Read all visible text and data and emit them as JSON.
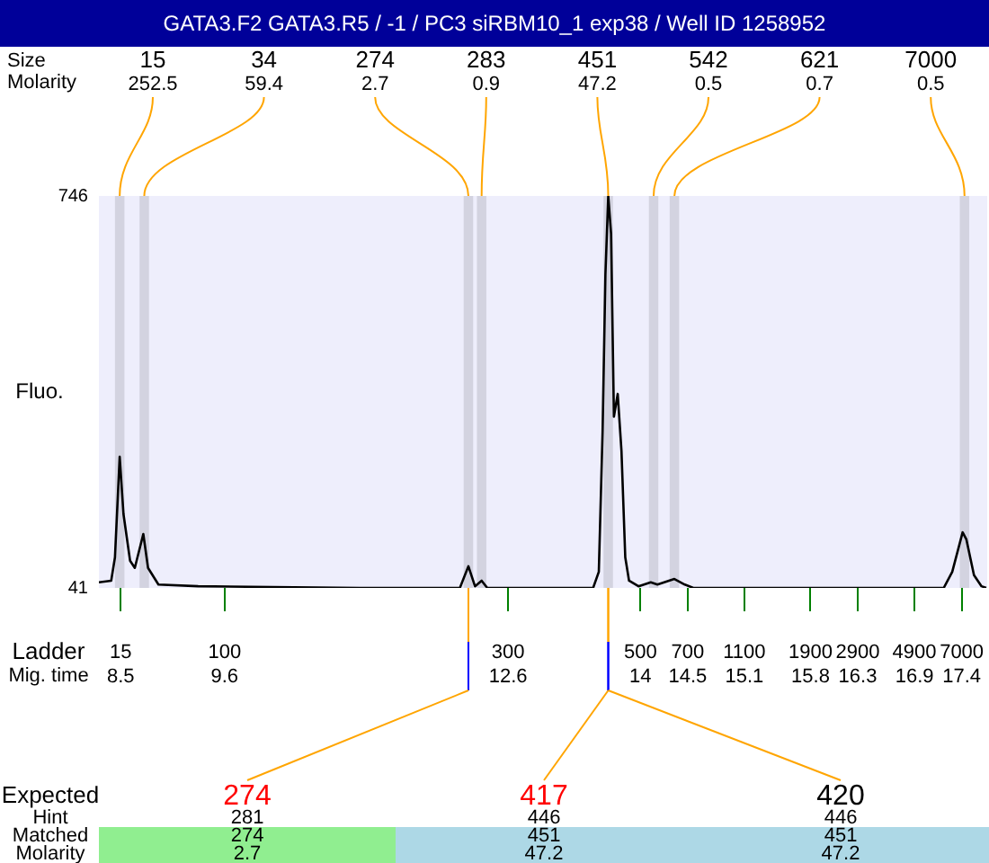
{
  "chart_data": {
    "type": "line",
    "title": "GATA3.F2  GATA3.R5 / -1 / PC3 siRBM10_1 exp38 / Well ID 1258952",
    "xlabel": "Mig. time",
    "ylabel": "Fluo.",
    "x": [
      8.27,
      8.4,
      8.44,
      8.49,
      8.53,
      8.6,
      8.65,
      8.74,
      8.79,
      8.9,
      9.32,
      11.03,
      12.09,
      12.18,
      12.25,
      12.32,
      12.38,
      12.68,
      12.71,
      13.5,
      13.56,
      13.6,
      13.63,
      13.66,
      13.69,
      13.72,
      13.76,
      13.8,
      13.84,
      13.88,
      13.98,
      14.11,
      14.18,
      14.36,
      14.47,
      14.56,
      17.21,
      17.3,
      17.41,
      17.45,
      17.53,
      17.61,
      17.66
    ],
    "series": [
      {
        "color": "#000000",
        "values": [
          51,
          54,
          96,
          277,
          174,
          90,
          77,
          138,
          77,
          47,
          44,
          41,
          41,
          80,
          44,
          54,
          41,
          41,
          41,
          41,
          70,
          322,
          605,
          746,
          678,
          349,
          390,
          287,
          96,
          54,
          44,
          51,
          47,
          57,
          47,
          41,
          41,
          70,
          141,
          128,
          64,
          44,
          41
        ]
      }
    ],
    "xlim": [
      8.27,
      17.67
    ],
    "xticks": [
      8.5,
      9.6,
      12.6,
      14,
      14.5,
      15.1,
      15.8,
      16.3,
      16.9,
      17.4
    ],
    "ylim": [
      41,
      746
    ],
    "yticks": [
      41,
      746
    ],
    "marker": "none",
    "bands": [
      {
        "axis": "x",
        "from": 8.44,
        "to": 8.54,
        "label": "15",
        "color": "#d3d3e0"
      },
      {
        "axis": "x",
        "from": 8.7,
        "to": 8.8,
        "label": "34",
        "color": "#d3d3e0"
      },
      {
        "axis": "x",
        "from": 12.13,
        "to": 12.23,
        "label": "274",
        "color": "#d3d3e0"
      },
      {
        "axis": "x",
        "from": 12.27,
        "to": 12.37,
        "label": "283",
        "color": "#d3d3e0"
      },
      {
        "axis": "x",
        "from": 13.61,
        "to": 13.71,
        "label": "451",
        "color": "#d3d3e0"
      },
      {
        "axis": "x",
        "from": 14.09,
        "to": 14.19,
        "label": "542",
        "color": "#d3d3e0"
      },
      {
        "axis": "x",
        "from": 14.31,
        "to": 14.41,
        "label": "621",
        "color": "#d3d3e0"
      },
      {
        "axis": "x",
        "from": 17.38,
        "to": 17.48,
        "label": "7000",
        "color": "#d3d3e0"
      }
    ],
    "annotations": [
      "Size",
      "Molarity",
      {
        "text": "252.5",
        "x": 8.49,
        "y": 746
      },
      {
        "text": "59.4",
        "x": 8.75,
        "y": 746
      },
      {
        "text": "2.7",
        "x": 12.18,
        "y": 746
      },
      {
        "text": "0.9",
        "x": 12.32,
        "y": 746
      },
      {
        "text": "47.2",
        "x": 13.66,
        "y": 746
      },
      {
        "text": "0.5",
        "x": 14.14,
        "y": 746
      },
      {
        "text": "0.7",
        "x": 14.36,
        "y": 746
      },
      {
        "text": "0.5",
        "x": 17.43,
        "y": 746
      },
      "Ladder",
      "15",
      "100",
      "300",
      "500",
      "700",
      "1100",
      "1900",
      "2900",
      "4900",
      "7000",
      "Expected",
      "Hint",
      "Matched",
      "Molarity",
      {
        "text": "274",
        "x": 12.18
      },
      {
        "text": "417",
        "x": 13.66
      },
      {
        "text": "420",
        "x": 13.66
      },
      "281",
      "446",
      "446",
      "274",
      "451",
      "451",
      "2.7",
      "47.2",
      "47.2"
    ]
  }
}
